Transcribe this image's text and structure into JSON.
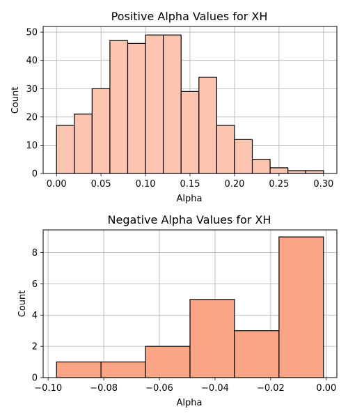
{
  "chart_data": [
    {
      "type": "bar",
      "title": "Positive Alpha Values for XH",
      "xlabel": "Alpha",
      "ylabel": "Count",
      "bin_edges": [
        0.0,
        0.02,
        0.04,
        0.06,
        0.08,
        0.1,
        0.12,
        0.14,
        0.16,
        0.18,
        0.2,
        0.22,
        0.24,
        0.26,
        0.28,
        0.3
      ],
      "values": [
        17,
        21,
        30,
        47,
        46,
        49,
        49,
        29,
        34,
        17,
        12,
        5,
        2,
        1,
        1
      ],
      "xlim": [
        -0.015,
        0.315
      ],
      "ylim": [
        0,
        52
      ],
      "xticks": [
        0.0,
        0.05,
        0.1,
        0.15,
        0.2,
        0.25,
        0.3
      ],
      "xtick_labels": [
        "0.00",
        "0.05",
        "0.10",
        "0.15",
        "0.20",
        "0.25",
        "0.30"
      ],
      "yticks": [
        0,
        10,
        20,
        30,
        40,
        50
      ],
      "ytick_labels": [
        "0",
        "10",
        "20",
        "30",
        "40",
        "50"
      ],
      "grid": true,
      "bar_color": "#fcc5b0",
      "edge_color": "#000000"
    },
    {
      "type": "bar",
      "title": "Negative Alpha Values for XH",
      "xlabel": "Alpha",
      "ylabel": "Count",
      "bin_edges": [
        -0.097,
        -0.081,
        -0.065,
        -0.049,
        -0.033,
        -0.017,
        -0.001
      ],
      "values": [
        1,
        1,
        2,
        5,
        3,
        9
      ],
      "xlim": [
        -0.1018,
        0.0038
      ],
      "ylim": [
        0,
        9.45
      ],
      "xticks": [
        -0.1,
        -0.08,
        -0.06,
        -0.04,
        -0.02,
        0.0
      ],
      "xtick_labels": [
        "−0.10",
        "−0.08",
        "−0.06",
        "−0.04",
        "−0.02",
        "0.00"
      ],
      "yticks": [
        0,
        2,
        4,
        6,
        8
      ],
      "ytick_labels": [
        "0",
        "2",
        "4",
        "6",
        "8"
      ],
      "grid": true,
      "bar_color": "#fca584",
      "edge_color": "#000000"
    }
  ]
}
